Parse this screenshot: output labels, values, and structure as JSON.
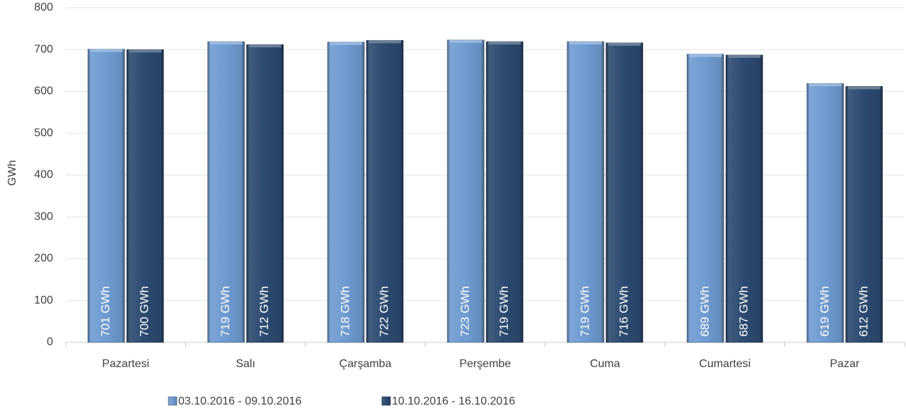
{
  "chart_data": {
    "type": "bar",
    "y_label": "GWh",
    "categories": [
      "Pazartesi",
      "Salı",
      "Çarşamba",
      "Perşembe",
      "Cuma",
      "Cumartesi",
      "Pazar"
    ],
    "series": [
      {
        "name": "03.10.2016 - 09.10.2016",
        "color": "#6f9bd1",
        "values": [
          701,
          719,
          718,
          723,
          719,
          689,
          619
        ],
        "value_labels": [
          "701 GWh",
          "719 GWh",
          "718 GWh",
          "723 GWh",
          "719 GWh",
          "689 GWh",
          "619 GWh"
        ]
      },
      {
        "name": "10.10.2016 - 16.10.2016",
        "color": "#2b4a70",
        "values": [
          700,
          712,
          722,
          719,
          716,
          687,
          612
        ],
        "value_labels": [
          "700 GWh",
          "712 GWh",
          "722 GWh",
          "719 GWh",
          "716 GWh",
          "687 GWh",
          "612 GWh"
        ]
      }
    ],
    "ylim": [
      0,
      800
    ],
    "yticks": [
      0,
      100,
      200,
      300,
      400,
      500,
      600,
      700,
      800
    ],
    "grid": true,
    "legend": "bottom"
  }
}
